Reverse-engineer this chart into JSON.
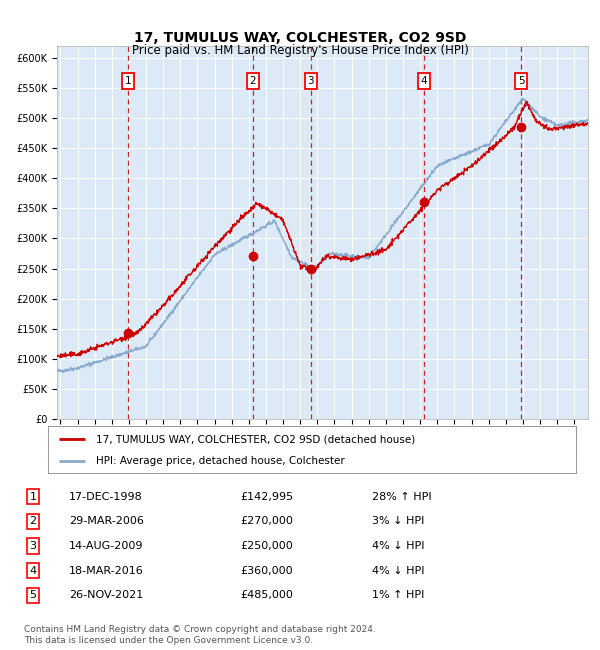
{
  "title": "17, TUMULUS WAY, COLCHESTER, CO2 9SD",
  "subtitle": "Price paid vs. HM Land Registry's House Price Index (HPI)",
  "ylim": [
    0,
    620000
  ],
  "xlim_year": [
    1994.8,
    2025.8
  ],
  "background_color": "#dce9f7",
  "grid_color": "#ffffff",
  "yticks": [
    0,
    50000,
    100000,
    150000,
    200000,
    250000,
    300000,
    350000,
    400000,
    450000,
    500000,
    550000,
    600000
  ],
  "ytick_labels": [
    "£0",
    "£50K",
    "£100K",
    "£150K",
    "£200K",
    "£250K",
    "£300K",
    "£350K",
    "£400K",
    "£450K",
    "£500K",
    "£550K",
    "£600K"
  ],
  "sale_points": [
    {
      "label": "1",
      "year": 1998.96,
      "price": 142995
    },
    {
      "label": "2",
      "year": 2006.24,
      "price": 270000
    },
    {
      "label": "3",
      "year": 2009.62,
      "price": 250000
    },
    {
      "label": "4",
      "year": 2016.21,
      "price": 360000
    },
    {
      "label": "5",
      "year": 2021.9,
      "price": 485000
    }
  ],
  "sale_color": "#cc0000",
  "hpi_color": "#88aacc",
  "legend_entries": [
    "17, TUMULUS WAY, COLCHESTER, CO2 9SD (detached house)",
    "HPI: Average price, detached house, Colchester"
  ],
  "table_rows": [
    [
      "1",
      "17-DEC-1998",
      "£142,995",
      "28% ↑ HPI"
    ],
    [
      "2",
      "29-MAR-2006",
      "£270,000",
      "3% ↓ HPI"
    ],
    [
      "3",
      "14-AUG-2009",
      "£250,000",
      "4% ↓ HPI"
    ],
    [
      "4",
      "18-MAR-2016",
      "£360,000",
      "4% ↓ HPI"
    ],
    [
      "5",
      "26-NOV-2021",
      "£485,000",
      "1% ↑ HPI"
    ]
  ],
  "footnote": "Contains HM Land Registry data © Crown copyright and database right 2024.\nThis data is licensed under the Open Government Licence v3.0.",
  "title_fontsize": 10,
  "subtitle_fontsize": 8.5,
  "tick_fontsize": 7,
  "legend_fontsize": 7.5,
  "table_fontsize": 8,
  "footnote_fontsize": 6.5
}
